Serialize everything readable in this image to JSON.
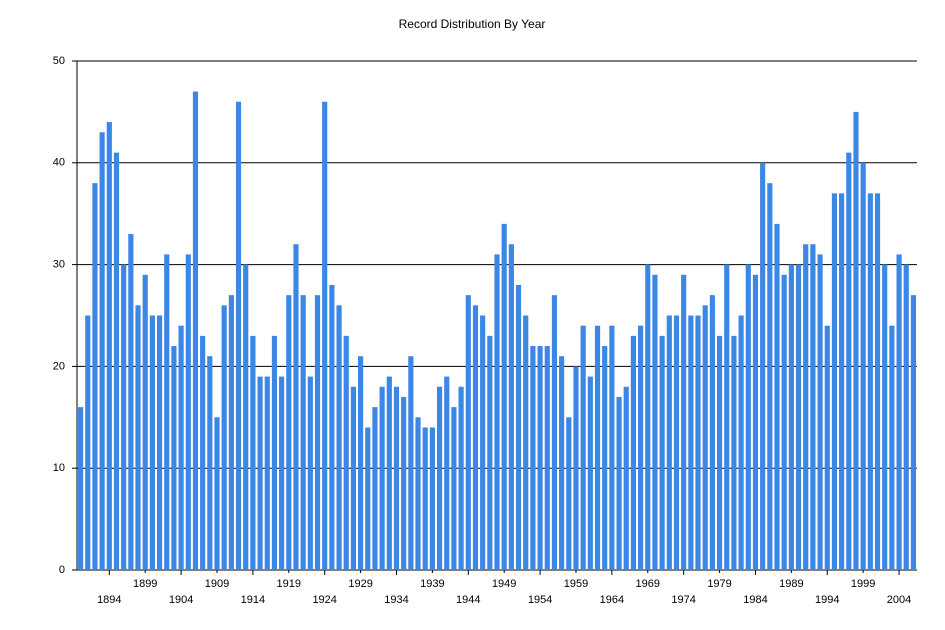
{
  "chart_data": {
    "type": "bar",
    "title": "Record Distribution By Year",
    "categories": [
      null,
      null,
      null,
      null,
      "1894",
      null,
      null,
      null,
      null,
      "1899",
      null,
      null,
      null,
      null,
      "1904",
      null,
      null,
      null,
      null,
      "1909",
      null,
      null,
      null,
      null,
      "1914",
      null,
      null,
      null,
      null,
      "1919",
      null,
      null,
      null,
      null,
      "1924",
      null,
      null,
      null,
      null,
      "1929",
      null,
      null,
      null,
      null,
      "1934",
      null,
      null,
      null,
      null,
      "1939",
      null,
      null,
      null,
      null,
      "1944",
      null,
      null,
      null,
      null,
      "1949",
      null,
      null,
      null,
      null,
      "1954",
      null,
      null,
      null,
      null,
      "1959",
      null,
      null,
      null,
      null,
      "1964",
      null,
      null,
      null,
      null,
      "1969",
      null,
      null,
      null,
      null,
      "1974",
      null,
      null,
      null,
      null,
      "1979",
      null,
      null,
      null,
      null,
      "1984",
      null,
      null,
      null,
      null,
      "1989",
      null,
      null,
      null,
      null,
      "1994",
      null,
      null,
      null,
      null,
      "1999",
      null,
      null,
      null,
      null,
      "2004",
      null,
      null
    ],
    "values": [
      16,
      25,
      38,
      43,
      44,
      41,
      30,
      33,
      26,
      29,
      25,
      25,
      31,
      22,
      24,
      31,
      47,
      23,
      21,
      15,
      26,
      27,
      46,
      30,
      23,
      19,
      19,
      23,
      19,
      27,
      32,
      27,
      19,
      27,
      46,
      28,
      26,
      23,
      18,
      21,
      14,
      16,
      18,
      19,
      18,
      17,
      21,
      15,
      14,
      14,
      18,
      19,
      16,
      18,
      27,
      26,
      25,
      23,
      31,
      34,
      32,
      28,
      25,
      22,
      22,
      22,
      27,
      21,
      15,
      20,
      24,
      19,
      24,
      22,
      24,
      17,
      18,
      23,
      24,
      30,
      29,
      23,
      25,
      25,
      29,
      25,
      25,
      26,
      27,
      23,
      30,
      23,
      25,
      30,
      29,
      40,
      38,
      34,
      29,
      30,
      30,
      32,
      32,
      31,
      24,
      37,
      37,
      41,
      45,
      40,
      37,
      37,
      30,
      24,
      31,
      30,
      27
    ],
    "color": "#3c87e6",
    "ylim": [
      0,
      50
    ],
    "yticks": [
      0,
      10,
      20,
      30,
      40,
      50
    ],
    "grid": true
  }
}
